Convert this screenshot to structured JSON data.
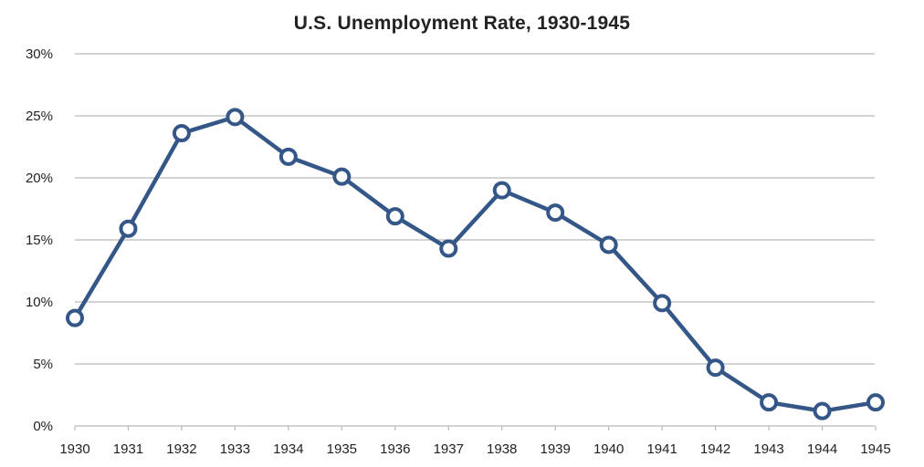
{
  "chart_data": {
    "type": "line",
    "title": "U.S. Unemployment Rate, 1930-1945",
    "xlabel": "",
    "ylabel": "",
    "categories": [
      "1930",
      "1931",
      "1932",
      "1933",
      "1934",
      "1935",
      "1936",
      "1937",
      "1938",
      "1939",
      "1940",
      "1941",
      "1942",
      "1943",
      "1944",
      "1945"
    ],
    "series": [
      {
        "name": "Unemployment Rate",
        "values": [
          8.7,
          15.9,
          23.6,
          24.9,
          21.7,
          20.1,
          16.9,
          14.3,
          19.0,
          17.2,
          14.6,
          9.9,
          4.7,
          1.9,
          1.2,
          1.9
        ]
      }
    ],
    "ylim": [
      0,
      30
    ],
    "yticks": [
      0,
      5,
      10,
      15,
      20,
      25,
      30
    ],
    "ytick_labels": [
      "0%",
      "5%",
      "10%",
      "15%",
      "20%",
      "25%",
      "30%"
    ],
    "grid": true,
    "legend": "none",
    "colors": {
      "line": "#345788",
      "grid": "#b9b9bd",
      "marker_fill": "#ffffff"
    }
  }
}
